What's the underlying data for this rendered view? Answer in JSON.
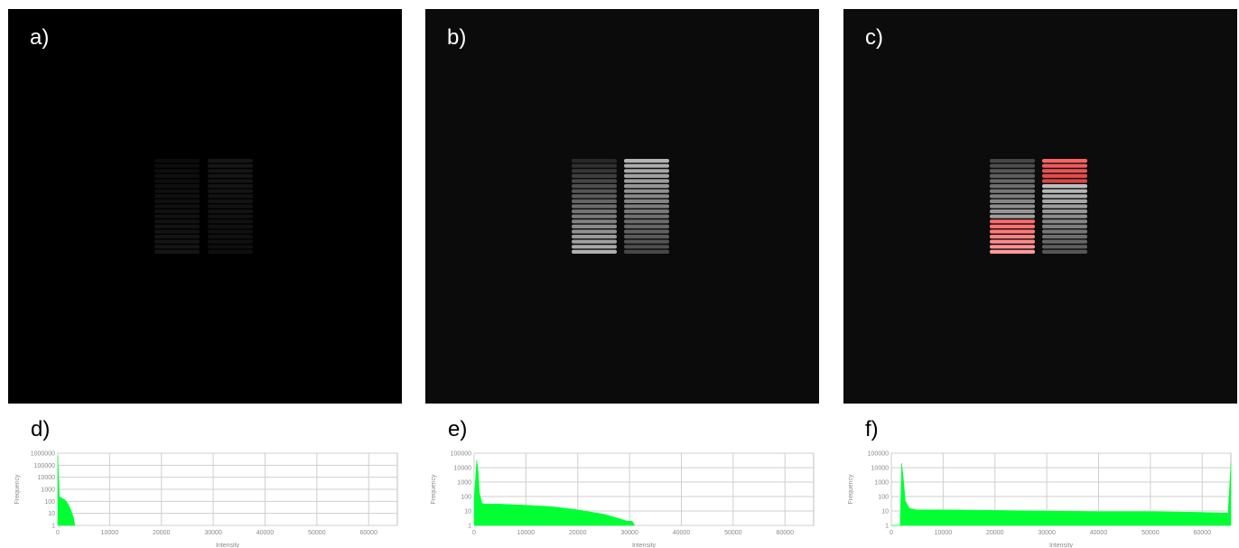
{
  "panels": [
    {
      "label": "a)",
      "stretch": "dark"
    },
    {
      "label": "b)",
      "stretch": "auto"
    },
    {
      "label": "c)",
      "stretch": "saturation-overlay",
      "overlay_color": "#e04040"
    }
  ],
  "histogram_labels": [
    "d)",
    "e)",
    "f)"
  ],
  "colors": {
    "histogram_fill": "#00ff33",
    "background": "#000000"
  },
  "chart_data": [
    {
      "type": "area",
      "title": "",
      "xlabel": "Intensity",
      "ylabel": "Frequency",
      "yscale": "log",
      "xlim": [
        0,
        65535
      ],
      "ylim": [
        1,
        1000000
      ],
      "x_ticks": [
        "0",
        "10000",
        "20000",
        "30000",
        "40000",
        "50000",
        "60000"
      ],
      "y_ticks": [
        "1",
        "10",
        "100",
        "1000",
        "10000",
        "100000",
        "1000000"
      ],
      "grid": true,
      "x": [
        0,
        300,
        600,
        1000,
        1500,
        2000,
        2500,
        3000,
        3300
      ],
      "y": [
        600000,
        250,
        200,
        170,
        120,
        60,
        20,
        5,
        1
      ]
    },
    {
      "type": "area",
      "title": "",
      "xlabel": "Intensity",
      "ylabel": "Frequency",
      "yscale": "log",
      "xlim": [
        0,
        65535
      ],
      "ylim": [
        1,
        100000
      ],
      "x_ticks": [
        "0",
        "10000",
        "20000",
        "30000",
        "40000",
        "50000",
        "60000"
      ],
      "y_ticks": [
        "1",
        "10",
        "100",
        "1000",
        "10000",
        "100000"
      ],
      "grid": true,
      "x": [
        0,
        500,
        800,
        1000,
        1500,
        2000,
        5000,
        10000,
        15000,
        20000,
        25000,
        28000,
        29500,
        30500,
        31000
      ],
      "y": [
        50,
        35000,
        5000,
        200,
        35,
        30,
        30,
        25,
        20,
        12,
        6,
        3,
        2,
        2,
        1
      ]
    },
    {
      "type": "area",
      "title": "",
      "xlabel": "Intensity",
      "ylabel": "Frequency",
      "yscale": "log",
      "xlim": [
        0,
        65535
      ],
      "ylim": [
        1,
        100000
      ],
      "x_ticks": [
        "0",
        "10000",
        "20000",
        "30000",
        "40000",
        "50000",
        "60000"
      ],
      "y_ticks": [
        "1",
        "10",
        "100",
        "1000",
        "10000",
        "100000"
      ],
      "grid": true,
      "x": [
        0,
        1700,
        2000,
        2300,
        2700,
        3500,
        5000,
        10000,
        20000,
        30000,
        40000,
        50000,
        60000,
        65000,
        65535
      ],
      "y": [
        1,
        1,
        20000,
        2000,
        50,
        15,
        12,
        12,
        11,
        10,
        9,
        9,
        8,
        7,
        20000
      ]
    }
  ]
}
